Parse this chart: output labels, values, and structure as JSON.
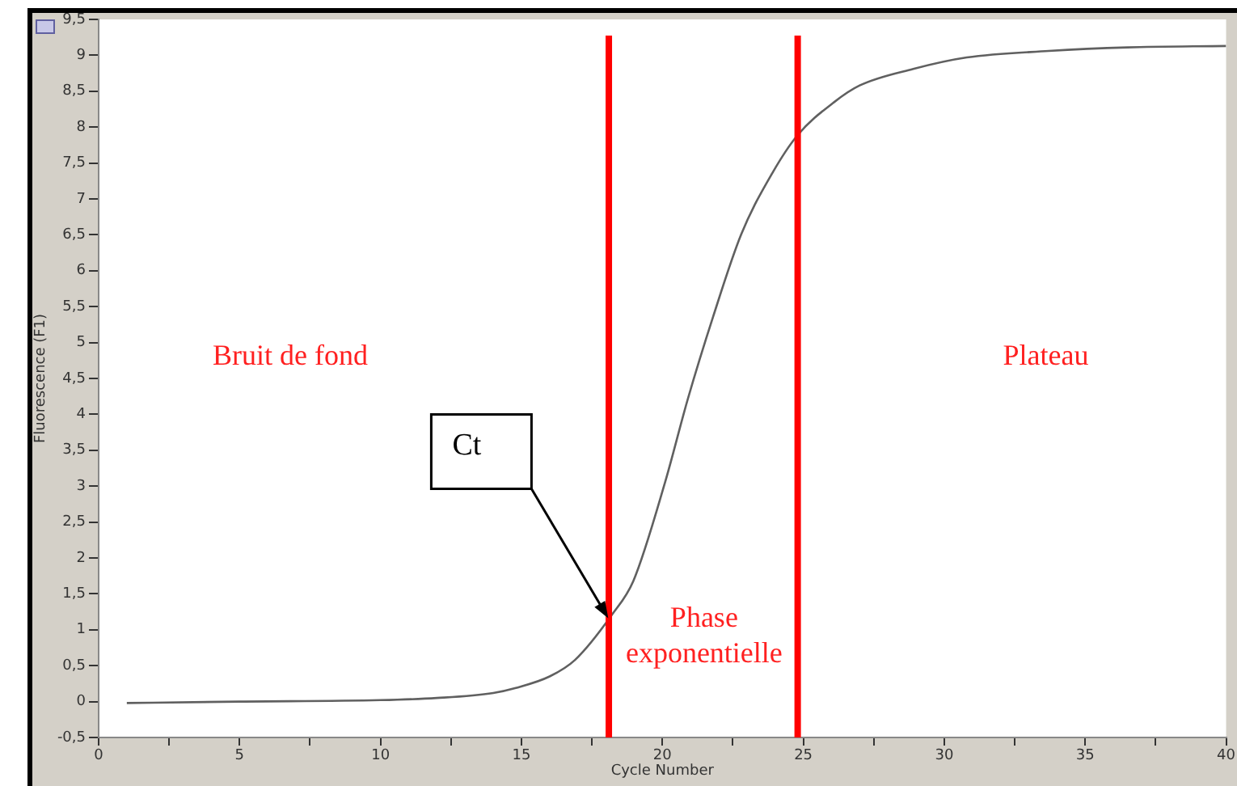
{
  "chart_data": {
    "type": "line",
    "xlabel": "Cycle Number",
    "ylabel": "Fluorescence (F1)",
    "x": [
      1,
      5,
      10,
      12,
      14,
      14.8,
      16,
      16.9,
      18.23,
      18.97,
      20.1,
      20.9,
      21.8,
      22.8,
      23.9,
      24.8,
      26.1,
      27.0,
      28.9,
      30.8,
      33.7,
      36.5,
      40
    ],
    "series": [
      {
        "color": "#606060",
        "values": [
          -0.02,
          0,
          0.02,
          0.05,
          0.12,
          0.19,
          0.35,
          0.58,
          1.22,
          1.68,
          3.06,
          4.21,
          5.36,
          6.51,
          7.36,
          7.89,
          8.35,
          8.58,
          8.81,
          8.97,
          9.06,
          9.11,
          9.13
        ]
      }
    ],
    "xlim": [
      0,
      40
    ],
    "xticks": [
      0,
      {
        "value": 2.5,
        "label": null
      },
      5,
      {
        "value": 7.5,
        "label": null
      },
      10,
      {
        "value": 12.5,
        "label": null
      },
      15,
      {
        "value": 17.5,
        "label": null
      },
      20,
      {
        "value": 22.5,
        "label": null
      },
      25,
      {
        "value": 27.5,
        "label": null
      },
      30,
      {
        "value": 32.5,
        "label": null
      },
      35,
      {
        "value": 37.5,
        "label": null
      },
      40
    ],
    "ylim": [
      -0.5,
      9.5
    ],
    "yticks": [
      {
        "value": -0.5,
        "label": "-0,5"
      },
      0,
      {
        "value": 0.5,
        "label": "0,5"
      },
      1,
      {
        "value": 1.5,
        "label": "1,5"
      },
      2,
      {
        "value": 2.5,
        "label": "2,5"
      },
      3,
      {
        "value": 3.5,
        "label": "3,5"
      },
      4,
      {
        "value": 4.5,
        "label": "4,5"
      },
      5,
      {
        "value": 5.5,
        "label": "5,5"
      },
      6,
      {
        "value": 6.5,
        "label": "6,5"
      },
      7,
      {
        "value": 7.5,
        "label": "7,5"
      },
      8,
      {
        "value": 8.5,
        "label": "8,5"
      },
      9,
      {
        "value": 9.5,
        "label": "9,5"
      }
    ],
    "ref_lines": [
      {
        "axis": "x",
        "value": 18.1,
        "color": "#ff0000"
      },
      {
        "axis": "x",
        "value": 24.8,
        "color": "#ff0000"
      }
    ],
    "annotations": [
      "Bruit de fond",
      "Plateau",
      "Phase exponentielle",
      "Ct"
    ],
    "grid": false,
    "legend": false,
    "marker": "none",
    "line_style": "solid"
  }
}
